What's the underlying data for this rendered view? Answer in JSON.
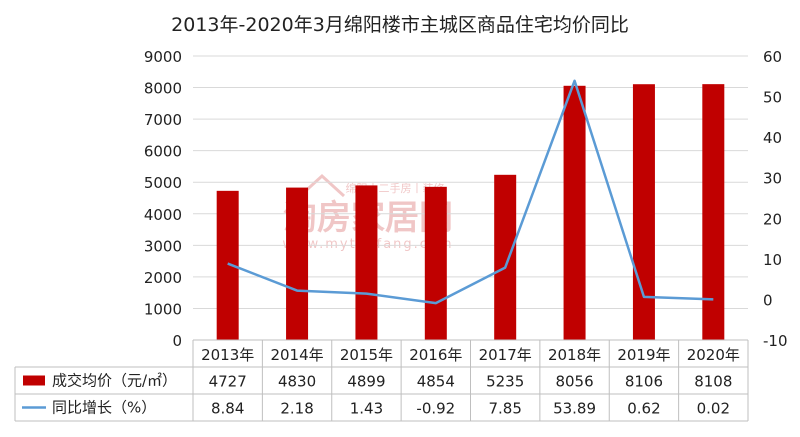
{
  "chart_data": {
    "type": "bar",
    "title": "2013年-2020年3月绵阳楼市主城区商品住宅均价同比",
    "categories": [
      "2013年",
      "2014年",
      "2015年",
      "2016年",
      "2017年",
      "2018年",
      "2019年",
      "2020年"
    ],
    "series": [
      {
        "name": "成交均价（元/㎡）",
        "type": "bar",
        "axis": "left",
        "color": "#c00000",
        "values": [
          4727,
          4830,
          4899,
          4854,
          5235,
          8056,
          8106,
          8108
        ],
        "table_values": [
          "4727",
          "4830",
          "4899",
          "4854",
          "5235",
          "8056",
          "8106",
          "8108"
        ]
      },
      {
        "name": "同比增长（%）",
        "type": "line",
        "axis": "right",
        "color": "#5b9bd5",
        "values": [
          8.84,
          2.18,
          1.43,
          -0.92,
          7.85,
          53.89,
          0.62,
          0.02
        ],
        "table_values": [
          "8.84",
          "2.18",
          "1.43",
          "-0.92",
          "7.85",
          "53.89",
          "0.62",
          "0.02"
        ]
      }
    ],
    "y_left": {
      "min": 0,
      "max": 9000,
      "step": 1000,
      "ticks": [
        "0",
        "1000",
        "2000",
        "3000",
        "4000",
        "5000",
        "6000",
        "7000",
        "8000",
        "9000"
      ]
    },
    "y_right": {
      "min": -10,
      "max": 60,
      "step": 10,
      "ticks": [
        "-10",
        "0",
        "10",
        "20",
        "30",
        "40",
        "50",
        "60"
      ]
    },
    "grid": true,
    "legend": "data-table-below",
    "watermark": {
      "text": "淘房家居网",
      "subtext": "绵阳丨二手房丨装修",
      "url": "www.mytaofang.com"
    }
  }
}
